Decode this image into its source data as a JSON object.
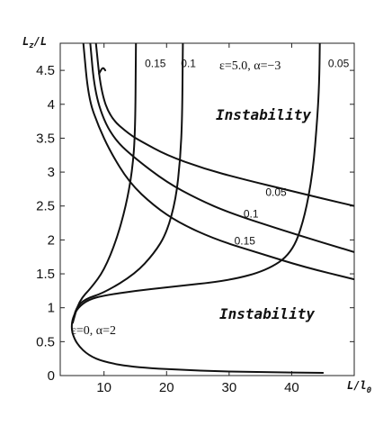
{
  "chart_data": {
    "type": "line",
    "title": "",
    "xlabel": {
      "main": "L/l",
      "sub": "0"
    },
    "ylabel": {
      "main": "L",
      "sub": "z",
      "rest": "/L"
    },
    "xlim": [
      3,
      50
    ],
    "ylim": [
      0,
      4.9
    ],
    "grid": false,
    "x_ticks": [
      "10",
      "20",
      "30",
      "40"
    ],
    "x_tick_values": [
      10,
      20,
      30,
      40
    ],
    "y_ticks": [
      "0",
      "0.5",
      "1",
      "1.5",
      "2",
      "2.5",
      "3",
      "3.5",
      "4",
      "4.5"
    ],
    "y_tick_values": [
      0,
      0.5,
      1,
      1.5,
      2,
      2.5,
      3,
      3.5,
      4,
      4.5
    ],
    "annotations": {
      "instability_upper": "Instability",
      "instability_lower": "Instability",
      "params_upper": "ε=5.0, α=−3",
      "params_lower": "ε=0, α=2"
    },
    "curve_labels": [
      {
        "text": "0.15",
        "x": 18.2,
        "y": 4.55
      },
      {
        "text": "0.1",
        "x": 23.5,
        "y": 4.55
      },
      {
        "text": "0.05",
        "x": 47.5,
        "y": 4.55
      },
      {
        "text": "0.05",
        "x": 37.5,
        "y": 2.65
      },
      {
        "text": "0.1",
        "x": 33.5,
        "y": 2.33
      },
      {
        "text": "0.15",
        "x": 32.5,
        "y": 1.93
      }
    ],
    "series": [
      {
        "points": [
          [
            45,
            0.04
          ],
          [
            35,
            0.05
          ],
          [
            25,
            0.07
          ],
          [
            15,
            0.12
          ],
          [
            10,
            0.2
          ],
          [
            7.5,
            0.3
          ],
          [
            5.8,
            0.45
          ],
          [
            5.0,
            0.6
          ],
          [
            4.8,
            0.72
          ],
          [
            5.0,
            0.85
          ],
          [
            5.8,
            1.0
          ],
          [
            7.5,
            1.12
          ],
          [
            10,
            1.18
          ],
          [
            15,
            1.25
          ],
          [
            20,
            1.3
          ],
          [
            30,
            1.4
          ],
          [
            36,
            1.55
          ],
          [
            40,
            1.8
          ],
          [
            42,
            2.3
          ],
          [
            43.4,
            3.0
          ],
          [
            44.1,
            3.8
          ],
          [
            44.4,
            4.3
          ],
          [
            44.5,
            4.9
          ]
        ]
      },
      {
        "points": [
          [
            5.0,
            0.78
          ],
          [
            5.5,
            1.0
          ],
          [
            7.0,
            1.13
          ],
          [
            10,
            1.22
          ],
          [
            15,
            1.5
          ],
          [
            18,
            1.8
          ],
          [
            20,
            2.1
          ],
          [
            21.5,
            2.6
          ],
          [
            22.2,
            3.2
          ],
          [
            22.5,
            3.8
          ],
          [
            22.6,
            4.9
          ]
        ]
      },
      {
        "points": [
          [
            5.0,
            0.78
          ],
          [
            6,
            1.1
          ],
          [
            8,
            1.3
          ],
          [
            10,
            1.55
          ],
          [
            12,
            2.0
          ],
          [
            13.5,
            2.5
          ],
          [
            14.5,
            3.0
          ],
          [
            15.0,
            3.6
          ],
          [
            15.1,
            4.9
          ]
        ]
      },
      {
        "points": [
          [
            8.7,
            4.9
          ],
          [
            9.5,
            4.2
          ],
          [
            11,
            3.8
          ],
          [
            14,
            3.56
          ],
          [
            16,
            3.45
          ],
          [
            20,
            3.25
          ],
          [
            26,
            3.05
          ],
          [
            32,
            2.9
          ],
          [
            40,
            2.72
          ],
          [
            50,
            2.5
          ]
        ]
      },
      {
        "points": [
          [
            7.8,
            4.9
          ],
          [
            8.5,
            4.2
          ],
          [
            10,
            3.75
          ],
          [
            12,
            3.45
          ],
          [
            15,
            3.2
          ],
          [
            20,
            2.85
          ],
          [
            25,
            2.6
          ],
          [
            30,
            2.4
          ],
          [
            40,
            2.1
          ],
          [
            50,
            1.82
          ]
        ]
      },
      {
        "points": [
          [
            6.7,
            4.9
          ],
          [
            7.5,
            4.1
          ],
          [
            9,
            3.7
          ],
          [
            11,
            3.3
          ],
          [
            14,
            2.85
          ],
          [
            18,
            2.5
          ],
          [
            22,
            2.25
          ],
          [
            28,
            2.0
          ],
          [
            35,
            1.8
          ],
          [
            42,
            1.6
          ],
          [
            50,
            1.42
          ]
        ]
      },
      {
        "points": [
          [
            9.2,
            4.45
          ],
          [
            9.8,
            4.55
          ],
          [
            10.2,
            4.5
          ]
        ]
      }
    ]
  }
}
